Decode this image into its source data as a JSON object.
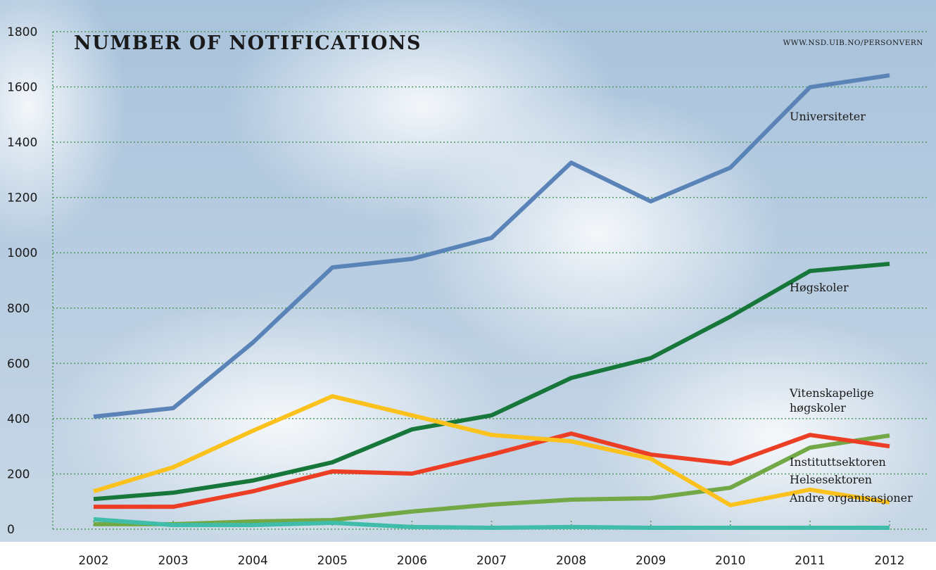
{
  "chart_data": {
    "type": "line",
    "title": "NUMBER OF NOTIFICATIONS",
    "subtitle": "WWW.NSD.UIB.NO/PERSONVERN",
    "x": [
      2002,
      2003,
      2004,
      2005,
      2006,
      2007,
      2008,
      2009,
      2010,
      2011,
      2012
    ],
    "xlim": [
      2002,
      2012
    ],
    "xticks": [
      2002,
      2003,
      2004,
      2005,
      2006,
      2007,
      2008,
      2009,
      2010,
      2011,
      2012
    ],
    "ylim": [
      0,
      1800
    ],
    "yticks": [
      0,
      200,
      400,
      600,
      800,
      1000,
      1200,
      1400,
      1600,
      1800
    ],
    "grid": true,
    "series": [
      {
        "name": "Universiteter",
        "color": "#5a83b8",
        "values": [
          407,
          438,
          675,
          947,
          978,
          1054,
          1326,
          1186,
          1308,
          1599,
          1642
        ]
      },
      {
        "name": "Høgskoler",
        "color": "#17773a",
        "values": [
          109,
          132,
          176,
          242,
          361,
          412,
          547,
          619,
          769,
          934,
          960
        ]
      },
      {
        "name": "Vitenskapelige høgskoler",
        "color": "#72a845",
        "values": [
          18,
          18,
          28,
          33,
          64,
          89,
          107,
          112,
          150,
          295,
          339
        ]
      },
      {
        "name": "Instituttsektoren",
        "color": "#ec3e24",
        "values": [
          81,
          81,
          137,
          209,
          201,
          270,
          346,
          270,
          237,
          341,
          300
        ]
      },
      {
        "name": "Helsesektoren",
        "color": "#fbc21d",
        "values": [
          137,
          224,
          356,
          481,
          412,
          341,
          318,
          255,
          87,
          143,
          97
        ]
      },
      {
        "name": "Andre organisasjoner",
        "color": "#3fbdaa",
        "values": [
          36,
          15,
          15,
          23,
          8,
          5,
          8,
          5,
          5,
          5,
          5
        ]
      }
    ]
  }
}
